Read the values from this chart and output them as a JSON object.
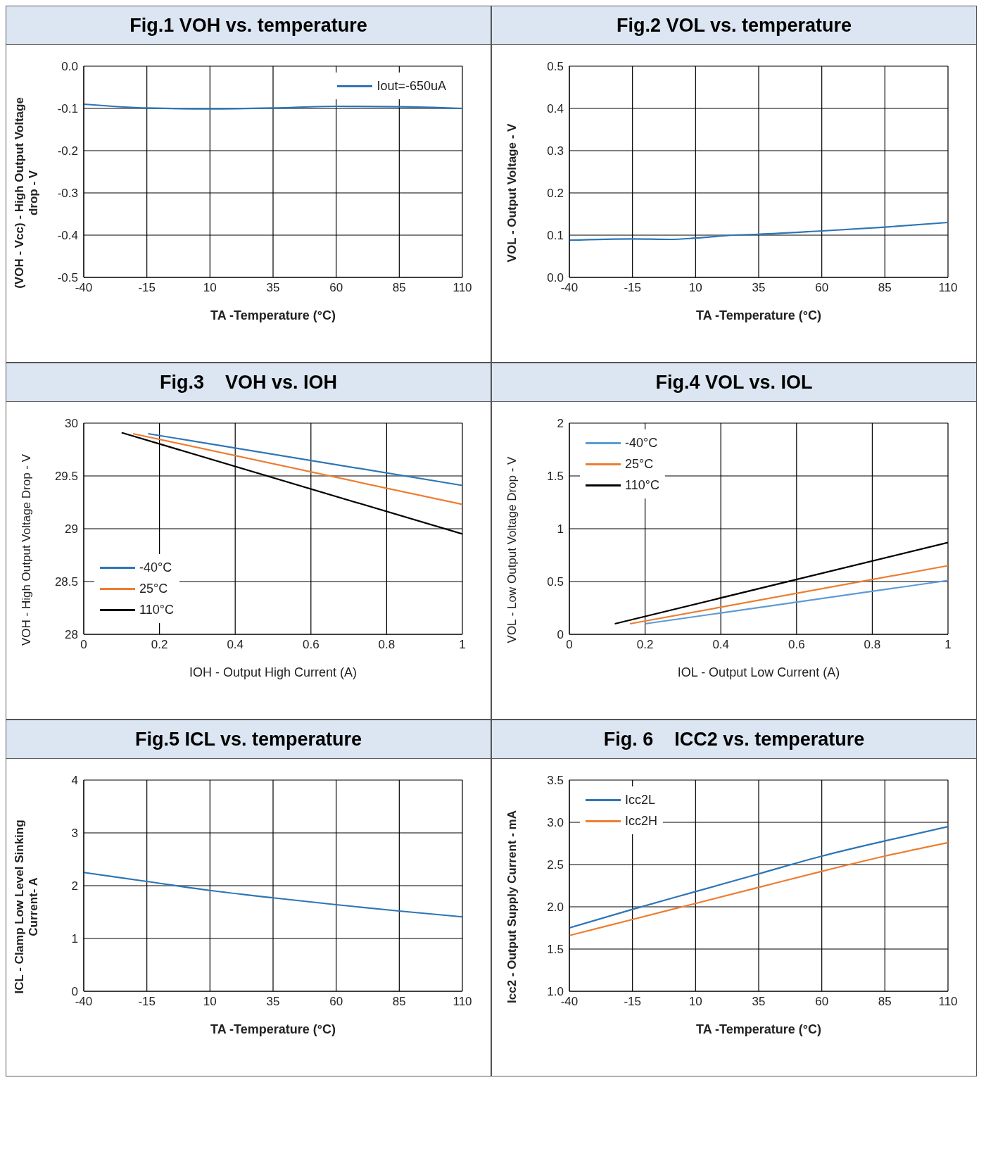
{
  "chart_data": [
    {
      "type": "line",
      "title": "Fig.1 VOH vs. temperature",
      "xlabel": "TA -Temperature (°C)",
      "ylabel": "(VOH - Vcc) - High Output Voltage drop - V",
      "x": [
        -40,
        -15,
        10,
        35,
        60,
        85,
        110
      ],
      "series": [
        {
          "name": "Iout=-650uA",
          "color": "#2e75b6",
          "values": [
            -0.09,
            -0.099,
            -0.101,
            -0.099,
            -0.095,
            -0.096,
            -0.1
          ]
        }
      ],
      "xlim": [
        -40,
        110
      ],
      "xticks": [
        -40,
        -15,
        10,
        35,
        60,
        85,
        110
      ],
      "ylim": [
        -0.5,
        0
      ],
      "yticks": [
        {
          "value": -0.5,
          "label": "-0.5"
        },
        -0.4,
        -0.3,
        -0.2,
        -0.1,
        {
          "value": 0,
          "label": "0.0"
        }
      ],
      "grid": true,
      "legend": "top right",
      "marker": "none"
    },
    {
      "type": "line",
      "title": "Fig.2 VOL vs. temperature",
      "xlabel": "TA -Temperature (°C)",
      "ylabel": "VOL - Output Voltage - V",
      "x": [
        -40,
        -15,
        0,
        10,
        25,
        35,
        60,
        85,
        110
      ],
      "series": [
        {
          "color": "#2e75b6",
          "values": [
            0.088,
            0.091,
            0.09,
            0.093,
            0.1,
            0.102,
            0.11,
            0.119,
            0.13
          ]
        }
      ],
      "xlim": [
        -40,
        110
      ],
      "xticks": [
        -40,
        -15,
        10,
        35,
        60,
        85,
        110
      ],
      "ylim": [
        0,
        0.5
      ],
      "yticks": [
        {
          "value": 0,
          "label": "0.0"
        },
        0.1,
        0.2,
        0.3,
        0.4,
        0.5
      ],
      "grid": true,
      "legend": false,
      "marker": "none"
    },
    {
      "type": "line",
      "title": "Fig.3    VOH vs. IOH",
      "xlabel": "IOH - Output High Current (A)",
      "ylabel": "VOH - High Output Voltage Drop - V",
      "series": [
        {
          "name": "-40°C",
          "color": "#2e75b6",
          "x": [
            0.17,
            1
          ],
          "values": [
            29.9,
            29.41
          ]
        },
        {
          "name": "25°C",
          "color": "#ed7d31",
          "x": [
            0.13,
            1
          ],
          "values": [
            29.9,
            29.23
          ]
        },
        {
          "name": "110°C",
          "color": "#000000",
          "x": [
            0.1,
            1
          ],
          "values": [
            29.91,
            28.95
          ]
        }
      ],
      "xlim": [
        0,
        1
      ],
      "xticks": [
        0,
        0.2,
        0.4,
        0.6,
        0.8,
        1
      ],
      "ylim": [
        28,
        30
      ],
      "yticks": [
        28,
        28.5,
        29,
        29.5,
        30
      ],
      "grid": true,
      "legend": "left",
      "marker": "none"
    },
    {
      "type": "line",
      "title": "Fig.4 VOL vs. IOL",
      "xlabel": "IOL - Output Low Current (A)",
      "ylabel": "VOL - Low Output Voltage Drop - V",
      "series": [
        {
          "name": "-40°C",
          "color": "#5b9bd5",
          "x": [
            0.2,
            1
          ],
          "values": [
            0.1,
            0.51
          ]
        },
        {
          "name": "25°C",
          "color": "#ed7d31",
          "x": [
            0.16,
            1
          ],
          "values": [
            0.1,
            0.65
          ]
        },
        {
          "name": "110°C",
          "color": "#000000",
          "x": [
            0.12,
            1
          ],
          "values": [
            0.1,
            0.87
          ]
        }
      ],
      "xlim": [
        0,
        1
      ],
      "xticks": [
        0,
        0.2,
        0.4,
        0.6,
        0.8,
        1
      ],
      "ylim": [
        0,
        2
      ],
      "yticks": [
        0,
        0.5,
        1,
        1.5,
        2
      ],
      "grid": true,
      "legend": "top left",
      "marker": "none"
    },
    {
      "type": "line",
      "title": "Fig.5 ICL vs. temperature",
      "xlabel": "TA -Temperature (°C)",
      "ylabel": "ICL - Clamp Low Level Sinking Current- A",
      "x": [
        -40,
        -15,
        10,
        35,
        60,
        85,
        110
      ],
      "series": [
        {
          "color": "#2e75b6",
          "values": [
            2.25,
            2.08,
            1.91,
            1.77,
            1.64,
            1.52,
            1.41
          ]
        }
      ],
      "xlim": [
        -40,
        110
      ],
      "xticks": [
        -40,
        -15,
        10,
        35,
        60,
        85,
        110
      ],
      "ylim": [
        0,
        4
      ],
      "yticks": [
        0,
        1,
        2,
        3,
        4
      ],
      "grid": true,
      "legend": false,
      "marker": "none"
    },
    {
      "type": "line",
      "title": "Fig. 6    ICC2 vs. temperature",
      "xlabel": "TA -Temperature (°C)",
      "ylabel": "Icc2 - Output Supply Current - mA",
      "x": [
        -40,
        -15,
        10,
        35,
        60,
        85,
        110
      ],
      "series": [
        {
          "name": "Icc2L",
          "color": "#2e75b6",
          "values": [
            1.75,
            1.97,
            2.18,
            2.39,
            2.6,
            2.78,
            2.95
          ]
        },
        {
          "name": "Icc2H",
          "color": "#ed7d31",
          "values": [
            1.66,
            1.85,
            2.04,
            2.23,
            2.42,
            2.6,
            2.76
          ]
        }
      ],
      "xlim": [
        -40,
        110
      ],
      "xticks": [
        -40,
        -15,
        10,
        35,
        60,
        85,
        110
      ],
      "ylim": [
        1,
        3.5
      ],
      "yticks": [
        {
          "value": 1,
          "label": "1.0"
        },
        1.5,
        {
          "value": 2,
          "label": "2.0"
        },
        2.5,
        {
          "value": 3,
          "label": "3.0"
        },
        3.5
      ],
      "grid": true,
      "legend": "top left",
      "marker": "none"
    }
  ]
}
